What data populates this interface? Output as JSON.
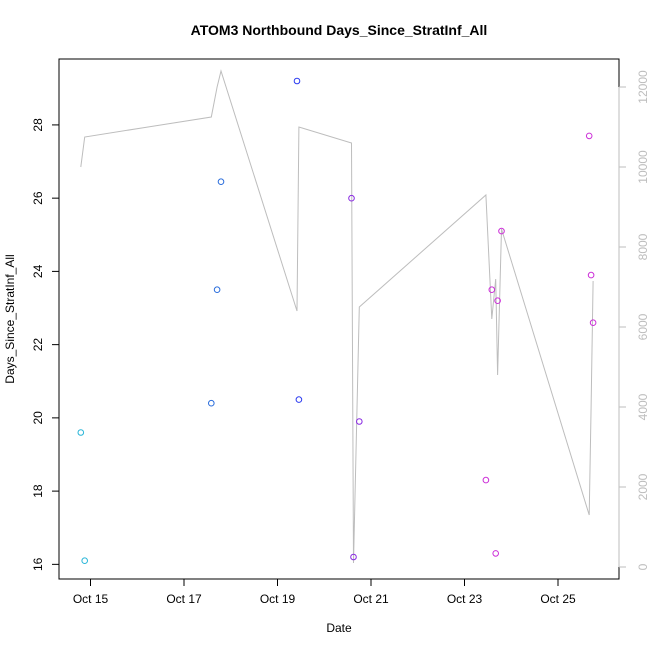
{
  "chart_data": {
    "type": "scatter",
    "title": "ATOM3 Northbound Days_Since_StratInf_All",
    "xlabel": "Date",
    "ylabel": "Days_Since_StratInf_All",
    "x_ticks": [
      "Oct 15",
      "Oct 17",
      "Oct 19",
      "Oct 21",
      "Oct 23",
      "Oct 25"
    ],
    "y_ticks": [
      "16",
      "18",
      "20",
      "22",
      "24",
      "26",
      "28"
    ],
    "y2_ticks": [
      "0",
      "2000",
      "4000",
      "6000",
      "8000",
      "10000",
      "12000"
    ],
    "ylim": [
      15.6,
      29.8
    ],
    "y2lim": [
      -300,
      12700
    ],
    "grid": false,
    "points": [
      {
        "date": "2014-10-14 19:00",
        "y": 19.6,
        "color": "#29b6d8"
      },
      {
        "date": "2014-10-14 21:00",
        "y": 16.1,
        "color": "#29b6d8"
      },
      {
        "date": "2014-10-17 14:00",
        "y": 20.4,
        "color": "#2a6ddc"
      },
      {
        "date": "2014-10-17 17:00",
        "y": 23.5,
        "color": "#2a6ddc"
      },
      {
        "date": "2014-10-17 19:00",
        "y": 26.45,
        "color": "#2a6ddc"
      },
      {
        "date": "2014-10-19 10:00",
        "y": 29.2,
        "color": "#2b3bf0"
      },
      {
        "date": "2014-10-19 11:00",
        "y": 20.5,
        "color": "#2b3bf0"
      },
      {
        "date": "2014-10-20 14:00",
        "y": 26.0,
        "color": "#8a2be2"
      },
      {
        "date": "2014-10-20 15:00",
        "y": 16.2,
        "color": "#8a2be2"
      },
      {
        "date": "2014-10-20 18:00",
        "y": 19.9,
        "color": "#8a2be2"
      },
      {
        "date": "2014-10-23 11:00",
        "y": 18.3,
        "color": "#cc2ed8"
      },
      {
        "date": "2014-10-23 14:00",
        "y": 23.5,
        "color": "#cc2ed8"
      },
      {
        "date": "2014-10-23 16:00",
        "y": 16.3,
        "color": "#cc2ed8"
      },
      {
        "date": "2014-10-23 17:00",
        "y": 23.2,
        "color": "#cc2ed8"
      },
      {
        "date": "2014-10-23 19:00",
        "y": 25.1,
        "color": "#cc2ed8"
      },
      {
        "date": "2014-10-25 16:00",
        "y": 27.7,
        "color": "#cc2ed8"
      },
      {
        "date": "2014-10-25 17:00",
        "y": 23.9,
        "color": "#cc2ed8"
      },
      {
        "date": "2014-10-25 18:00",
        "y": 22.6,
        "color": "#cc2ed8"
      }
    ],
    "line_series": {
      "axis": "right",
      "color": "#bdbdbd",
      "points": [
        {
          "date": "2014-10-14 19:00",
          "y": 10000
        },
        {
          "date": "2014-10-14 21:00",
          "y": 10750
        },
        {
          "date": "2014-10-17 14:00",
          "y": 11250
        },
        {
          "date": "2014-10-17 17:00",
          "y": 12000
        },
        {
          "date": "2014-10-17 19:00",
          "y": 12400
        },
        {
          "date": "2014-10-19 10:00",
          "y": 6400
        },
        {
          "date": "2014-10-19 11:00",
          "y": 11000
        },
        {
          "date": "2014-10-20 14:00",
          "y": 10600
        },
        {
          "date": "2014-10-20 15:00",
          "y": 100
        },
        {
          "date": "2014-10-20 18:00",
          "y": 6500
        },
        {
          "date": "2014-10-23 11:00",
          "y": 9300
        },
        {
          "date": "2014-10-23 14:00",
          "y": 6200
        },
        {
          "date": "2014-10-23 16:00",
          "y": 7200
        },
        {
          "date": "2014-10-23 17:00",
          "y": 4800
        },
        {
          "date": "2014-10-23 19:00",
          "y": 8450
        },
        {
          "date": "2014-10-25 16:00",
          "y": 1300
        },
        {
          "date": "2014-10-25 17:00",
          "y": 4000
        },
        {
          "date": "2014-10-25 18:00",
          "y": 7150
        }
      ]
    }
  }
}
